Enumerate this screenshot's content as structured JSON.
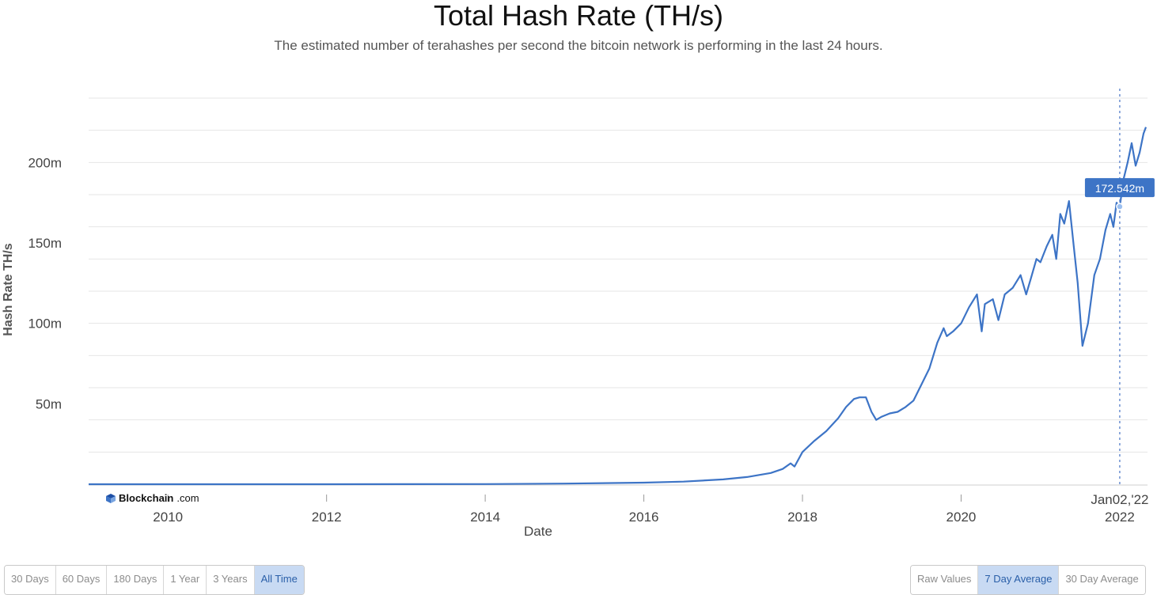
{
  "page": {
    "title": "Total Hash Rate (TH/s)",
    "subtitle": "The estimated number of terahashes per second the bitcoin network is performing in the last 24 hours."
  },
  "logo": {
    "brand": "Blockchain",
    "suffix": ".com"
  },
  "range_buttons": [
    {
      "label": "30 Days",
      "active": false
    },
    {
      "label": "60 Days",
      "active": false
    },
    {
      "label": "180 Days",
      "active": false
    },
    {
      "label": "1 Year",
      "active": false
    },
    {
      "label": "3 Years",
      "active": false
    },
    {
      "label": "All Time",
      "active": true
    }
  ],
  "mode_buttons": [
    {
      "label": "Raw Values",
      "active": false
    },
    {
      "label": "7 Day Average",
      "active": true
    },
    {
      "label": "30 Day Average",
      "active": false
    }
  ],
  "tooltip": {
    "value_label": "172.542m",
    "date_label": "Jan02,'22",
    "date": 2022.0,
    "value": 172.542
  },
  "colors": {
    "line": "#3d74c6",
    "tooltip_bg": "#3d74c6",
    "active_btn": "#c8daf3",
    "grid": "#e6e6e6"
  },
  "chart_data": {
    "type": "line",
    "title": "Total Hash Rate (TH/s)",
    "xlabel": "Date",
    "ylabel": "Hash Rate TH/s",
    "xlim": [
      2009.0,
      2022.35
    ],
    "ylim": [
      0,
      240
    ],
    "x_ticks": [
      {
        "value": 2010,
        "label": "2010"
      },
      {
        "value": 2012,
        "label": "2012"
      },
      {
        "value": 2014,
        "label": "2014"
      },
      {
        "value": 2016,
        "label": "2016"
      },
      {
        "value": 2018,
        "label": "2018"
      },
      {
        "value": 2020,
        "label": "2020"
      },
      {
        "value": 2022,
        "label": "2022"
      }
    ],
    "y_ticks": [
      {
        "value": 50,
        "label": "50m"
      },
      {
        "value": 100,
        "label": "100m"
      },
      {
        "value": 150,
        "label": "150m"
      },
      {
        "value": 200,
        "label": "200m"
      }
    ],
    "grid": true,
    "series": [
      {
        "values_unit": "million TH/s",
        "points": [
          [
            2009.0,
            0
          ],
          [
            2012.0,
            0.01
          ],
          [
            2014.0,
            0.1
          ],
          [
            2015.0,
            0.4
          ],
          [
            2016.0,
            1.0
          ],
          [
            2016.5,
            1.6
          ],
          [
            2017.0,
            3.0
          ],
          [
            2017.3,
            4.5
          ],
          [
            2017.6,
            7.0
          ],
          [
            2017.75,
            9.5
          ],
          [
            2017.85,
            13
          ],
          [
            2017.9,
            11
          ],
          [
            2018.0,
            20
          ],
          [
            2018.15,
            27
          ],
          [
            2018.3,
            33
          ],
          [
            2018.45,
            41
          ],
          [
            2018.55,
            48
          ],
          [
            2018.65,
            53
          ],
          [
            2018.72,
            54
          ],
          [
            2018.8,
            54
          ],
          [
            2018.87,
            45
          ],
          [
            2018.93,
            40
          ],
          [
            2019.0,
            42
          ],
          [
            2019.1,
            44
          ],
          [
            2019.2,
            45
          ],
          [
            2019.3,
            48
          ],
          [
            2019.4,
            52
          ],
          [
            2019.5,
            62
          ],
          [
            2019.6,
            72
          ],
          [
            2019.7,
            88
          ],
          [
            2019.78,
            97
          ],
          [
            2019.82,
            92
          ],
          [
            2019.9,
            95
          ],
          [
            2020.0,
            100
          ],
          [
            2020.1,
            110
          ],
          [
            2020.2,
            118
          ],
          [
            2020.26,
            95
          ],
          [
            2020.3,
            112
          ],
          [
            2020.4,
            115
          ],
          [
            2020.47,
            102
          ],
          [
            2020.55,
            118
          ],
          [
            2020.65,
            122
          ],
          [
            2020.75,
            130
          ],
          [
            2020.82,
            118
          ],
          [
            2020.88,
            128
          ],
          [
            2020.95,
            140
          ],
          [
            2021.0,
            138
          ],
          [
            2021.08,
            148
          ],
          [
            2021.15,
            155
          ],
          [
            2021.2,
            140
          ],
          [
            2021.25,
            168
          ],
          [
            2021.3,
            162
          ],
          [
            2021.36,
            176
          ],
          [
            2021.42,
            148
          ],
          [
            2021.47,
            125
          ],
          [
            2021.53,
            86
          ],
          [
            2021.6,
            100
          ],
          [
            2021.68,
            130
          ],
          [
            2021.75,
            140
          ],
          [
            2021.82,
            158
          ],
          [
            2021.88,
            168
          ],
          [
            2021.92,
            160
          ],
          [
            2021.96,
            175
          ],
          [
            2022.0,
            172.5
          ],
          [
            2022.05,
            190
          ],
          [
            2022.1,
            200
          ],
          [
            2022.15,
            212
          ],
          [
            2022.2,
            198
          ],
          [
            2022.25,
            206
          ],
          [
            2022.3,
            218
          ],
          [
            2022.33,
            222
          ]
        ]
      }
    ]
  }
}
